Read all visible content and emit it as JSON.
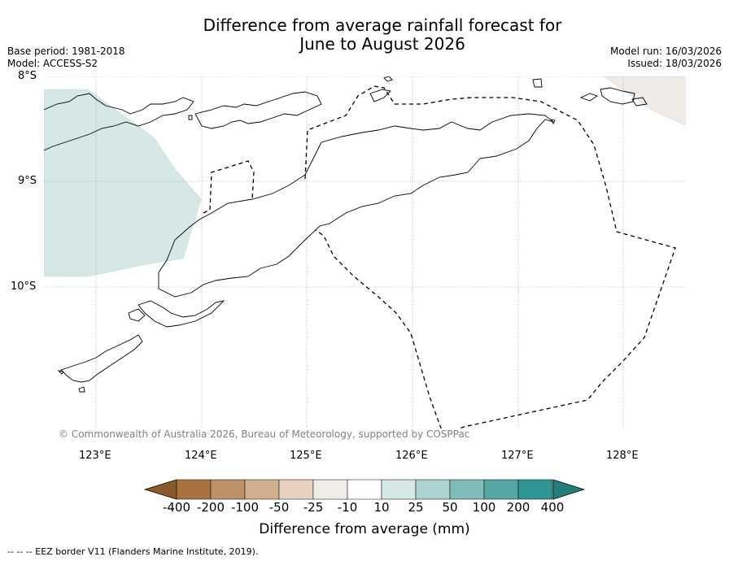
{
  "title": {
    "line1": "Difference from average rainfall forecast for",
    "line2": "June to August 2026"
  },
  "meta_left": {
    "base_period": "Base period: 1981-2018",
    "model": "Model: ACCESS-S2"
  },
  "meta_right": {
    "model_run": "Model run: 16/03/2026",
    "issued": "Issued: 18/03/2026"
  },
  "map": {
    "lat_labels": [
      "8°S",
      "9°S",
      "10°S"
    ],
    "lon_labels": [
      "123°E",
      "124°E",
      "125°E",
      "126°E",
      "127°E",
      "128°E"
    ],
    "copyright": "© Commonwealth of Australia 2026, Bureau of Meteorology, supported by COSPPac"
  },
  "colorbar": {
    "labels": [
      "-400",
      "-200",
      "-100",
      "-50",
      "-25",
      "-10",
      "10",
      "25",
      "50",
      "100",
      "200",
      "400"
    ],
    "colors": [
      "#8b5a2b",
      "#a8723f",
      "#be9068",
      "#d2b08f",
      "#e6d2bf",
      "#f0ece7",
      "#ffffff",
      "#d5e8e6",
      "#abd3d1",
      "#80bcb9",
      "#56a6a3",
      "#2e9794",
      "#237d7b"
    ],
    "title": "Difference from average (mm)"
  },
  "footnote": "--  --  -- EEZ border V11 (Flanders Marine Institute, 2019)."
}
